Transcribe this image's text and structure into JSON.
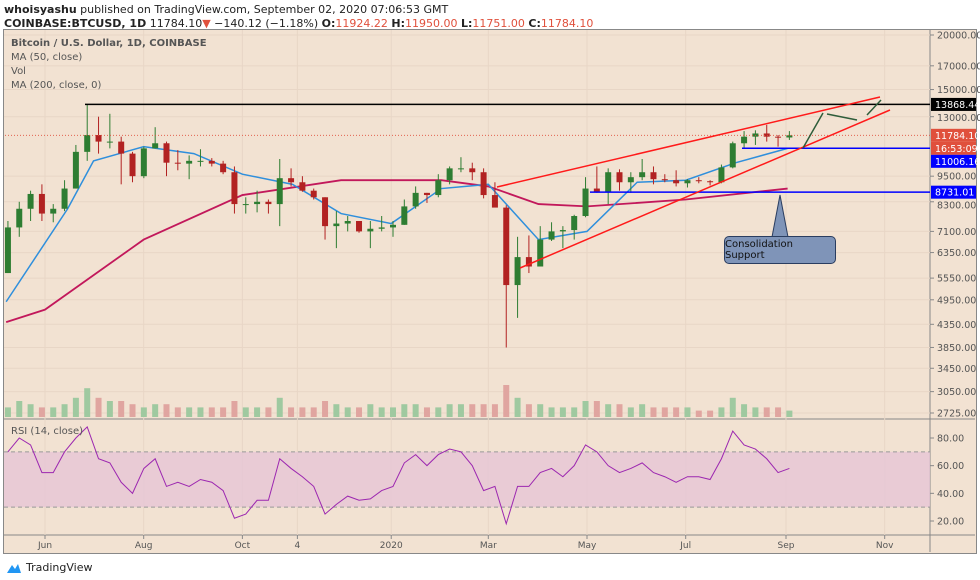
{
  "header": {
    "author": "whoisyashu",
    "published": "published on TradingView.com, September 02, 2020 07:06:53 GMT",
    "symbol": "COINBASE:BTCUSD, 1D",
    "last": "11784.10",
    "change": "−140.12 (−1.18%)",
    "o_label": "O:",
    "o": "11924.22",
    "h_label": "H:",
    "h": "11950.00",
    "l_label": "L:",
    "l": "11751.00",
    "c_label": "C:",
    "c": "11784.10"
  },
  "legend": {
    "title": "Bitcoin / U.S. Dollar, 1D, COINBASE",
    "ma50": "MA (50, close)",
    "vol": "Vol",
    "ma200": "MA (200, close, 0)"
  },
  "rsi_label": "RSI (14, close)",
  "annotation": "Consolidation Support",
  "brand": "TradingView",
  "colors": {
    "background": "#f2e2d2",
    "up": "#2e7d32",
    "down": "#b22222",
    "ma50": "#2f8fdc",
    "ma200": "#c2185b",
    "channel": "#ff1a1a",
    "support": "#0000ff",
    "rsi": "#9c27b0",
    "rsi_band": "#e6c6d6",
    "projection": "#2e5d3a"
  },
  "chart_data": {
    "type": "candlestick",
    "interval": "weekly approximation of 1D candles",
    "y_scale": "log",
    "ylim": [
      2725,
      20000
    ],
    "y_ticks": [
      "20000.00",
      "17000.00",
      "15000.00",
      "13000.00",
      "9500.00",
      "8300.00",
      "7100.00",
      "6350.00",
      "5550.00",
      "4950.00",
      "4350.00",
      "3850.00",
      "3450.00",
      "3050.00",
      "2725.00"
    ],
    "price_labels": [
      {
        "text": "13868.44",
        "value": 13868.44,
        "color": "#000000"
      },
      {
        "text": "11784.10",
        "value": 11784.1,
        "color": "#e0503c"
      },
      {
        "text": "16:53:09",
        "value": 11380,
        "color": "#e0503c"
      },
      {
        "text": "11006.16",
        "value": 11006.16,
        "color": "#0000ff"
      },
      {
        "text": "8731.01",
        "value": 8731.01,
        "color": "#0000ff"
      }
    ],
    "x_ticks": [
      {
        "label": "Jun",
        "date": "2019-06-01"
      },
      {
        "label": "Aug",
        "date": "2019-08-01"
      },
      {
        "label": "Oct",
        "date": "2019-10-01"
      },
      {
        "label": "4",
        "date": "2019-11-04"
      },
      {
        "label": "2020",
        "date": "2020-01-01"
      },
      {
        "label": "Mar",
        "date": "2020-03-01"
      },
      {
        "label": "May",
        "date": "2020-05-01"
      },
      {
        "label": "Jul",
        "date": "2020-07-01"
      },
      {
        "label": "Sep",
        "date": "2020-09-01"
      },
      {
        "label": "Nov",
        "date": "2020-11-01"
      }
    ],
    "candles_ohlc": [
      [
        "2019-05-06",
        5700,
        7500,
        5700,
        7250
      ],
      [
        "2019-05-13",
        7250,
        8300,
        6900,
        8000
      ],
      [
        "2019-05-20",
        8000,
        8800,
        7500,
        8650
      ],
      [
        "2019-05-27",
        8650,
        9100,
        7500,
        7800
      ],
      [
        "2019-06-03",
        7800,
        8200,
        7450,
        8000
      ],
      [
        "2019-06-10",
        8000,
        9300,
        7900,
        8900
      ],
      [
        "2019-06-17",
        8900,
        11200,
        8900,
        10800
      ],
      [
        "2019-06-24",
        10800,
        13868,
        10300,
        11800
      ],
      [
        "2019-07-01",
        11800,
        13000,
        10700,
        11400
      ],
      [
        "2019-07-08",
        11400,
        13200,
        11000,
        11400
      ],
      [
        "2019-07-15",
        11400,
        11700,
        9100,
        10700
      ],
      [
        "2019-07-22",
        10700,
        10800,
        9200,
        9500
      ],
      [
        "2019-07-29",
        9500,
        11100,
        9400,
        11000
      ],
      [
        "2019-08-05",
        11000,
        12300,
        11000,
        11300
      ],
      [
        "2019-08-12",
        11300,
        11400,
        9500,
        10200
      ],
      [
        "2019-08-19",
        10200,
        10900,
        9800,
        10150
      ],
      [
        "2019-08-26",
        10150,
        10600,
        9350,
        10300
      ],
      [
        "2019-09-02",
        10300,
        10950,
        10000,
        10300
      ],
      [
        "2019-09-09",
        10300,
        10450,
        10000,
        10150
      ],
      [
        "2019-09-16",
        10150,
        10300,
        9600,
        9700
      ],
      [
        "2019-09-23",
        9700,
        10000,
        7800,
        8200
      ],
      [
        "2019-09-30",
        8200,
        8500,
        7800,
        8200
      ],
      [
        "2019-10-07",
        8200,
        8800,
        7850,
        8300
      ],
      [
        "2019-10-14",
        8300,
        8400,
        7800,
        8200
      ],
      [
        "2019-10-21",
        8200,
        10400,
        7300,
        9400
      ],
      [
        "2019-10-28",
        9400,
        9900,
        9000,
        9200
      ],
      [
        "2019-11-04",
        9200,
        9500,
        8750,
        8800
      ],
      [
        "2019-11-11",
        8800,
        8900,
        8400,
        8500
      ],
      [
        "2019-11-18",
        8500,
        8500,
        6800,
        7300
      ],
      [
        "2019-11-25",
        7300,
        7900,
        6500,
        7400
      ],
      [
        "2019-12-02",
        7400,
        7700,
        7100,
        7500
      ],
      [
        "2019-12-09",
        7500,
        7500,
        7050,
        7100
      ],
      [
        "2019-12-16",
        7100,
        7500,
        6500,
        7200
      ],
      [
        "2019-12-23",
        7200,
        7700,
        7100,
        7250
      ],
      [
        "2019-12-30",
        7250,
        7500,
        6900,
        7350
      ],
      [
        "2020-01-06",
        7350,
        8400,
        7350,
        8100
      ],
      [
        "2020-01-13",
        8100,
        9000,
        8000,
        8700
      ],
      [
        "2020-01-20",
        8700,
        8700,
        8250,
        8600
      ],
      [
        "2020-01-27",
        8600,
        9600,
        8500,
        9300
      ],
      [
        "2020-02-03",
        9300,
        10000,
        9100,
        9900
      ],
      [
        "2020-02-10",
        9900,
        10500,
        9700,
        9900
      ],
      [
        "2020-02-17",
        9900,
        10200,
        9300,
        9700
      ],
      [
        "2020-02-24",
        9700,
        9900,
        8450,
        8600
      ],
      [
        "2020-03-02",
        8600,
        9200,
        8500,
        8050
      ],
      [
        "2020-03-09",
        8050,
        8150,
        3850,
        5350
      ],
      [
        "2020-03-16",
        5350,
        6900,
        4500,
        6200
      ],
      [
        "2020-03-23",
        6200,
        6950,
        5700,
        5900
      ],
      [
        "2020-03-30",
        5900,
        7300,
        5900,
        6800
      ],
      [
        "2020-04-06",
        6800,
        7450,
        6750,
        7100
      ],
      [
        "2020-04-13",
        7100,
        7300,
        6500,
        7150
      ],
      [
        "2020-04-20",
        7150,
        7750,
        6800,
        7700
      ],
      [
        "2020-04-27",
        7700,
        9450,
        7650,
        8900
      ],
      [
        "2020-05-04",
        8900,
        10000,
        8700,
        8750
      ],
      [
        "2020-05-11",
        8750,
        9900,
        8200,
        9700
      ],
      [
        "2020-05-18",
        9700,
        9850,
        8800,
        9200
      ],
      [
        "2020-05-25",
        9200,
        9700,
        8700,
        9450
      ],
      [
        "2020-06-01",
        9450,
        10400,
        9300,
        9700
      ],
      [
        "2020-06-08",
        9700,
        10000,
        9100,
        9350
      ],
      [
        "2020-06-15",
        9350,
        9600,
        9200,
        9300
      ],
      [
        "2020-06-22",
        9300,
        9800,
        9000,
        9150
      ],
      [
        "2020-06-29",
        9150,
        9350,
        8950,
        9300
      ],
      [
        "2020-07-06",
        9300,
        9450,
        9150,
        9250
      ],
      [
        "2020-07-13",
        9250,
        9300,
        9050,
        9200
      ],
      [
        "2020-07-20",
        9200,
        10100,
        9150,
        9950
      ],
      [
        "2020-07-27",
        9950,
        11400,
        9900,
        11300
      ],
      [
        "2020-08-03",
        11300,
        12050,
        11000,
        11700
      ],
      [
        "2020-08-10",
        11700,
        12100,
        11200,
        11900
      ],
      [
        "2020-08-17",
        11900,
        12450,
        11400,
        11700
      ],
      [
        "2020-08-24",
        11700,
        11800,
        11100,
        11650
      ],
      [
        "2020-08-31",
        11650,
        12050,
        11500,
        11784.1
      ]
    ],
    "ma50": [
      [
        "2019-05-08",
        4900
      ],
      [
        "2019-06-15",
        8000
      ],
      [
        "2019-07-01",
        10300
      ],
      [
        "2019-08-01",
        11100
      ],
      [
        "2019-09-01",
        10700
      ],
      [
        "2019-10-01",
        9600
      ],
      [
        "2019-11-01",
        9100
      ],
      [
        "2019-12-01",
        7800
      ],
      [
        "2020-01-01",
        7400
      ],
      [
        "2020-02-01",
        8900
      ],
      [
        "2020-03-01",
        9100
      ],
      [
        "2020-04-01",
        6800
      ],
      [
        "2020-05-01",
        7100
      ],
      [
        "2020-06-01",
        9200
      ],
      [
        "2020-07-01",
        9300
      ],
      [
        "2020-08-01",
        10200
      ],
      [
        "2020-09-02",
        11000
      ]
    ],
    "ma200": [
      [
        "2019-05-08",
        4400
      ],
      [
        "2019-06-01",
        4700
      ],
      [
        "2019-08-01",
        6800
      ],
      [
        "2019-10-01",
        8600
      ],
      [
        "2019-12-01",
        9300
      ],
      [
        "2020-02-01",
        9300
      ],
      [
        "2020-03-01",
        9000
      ],
      [
        "2020-04-01",
        8200
      ],
      [
        "2020-05-01",
        8100
      ],
      [
        "2020-07-01",
        8400
      ],
      [
        "2020-09-02",
        8900
      ]
    ],
    "volume_relative": [
      3,
      5,
      4,
      3,
      3,
      4,
      6,
      9,
      6,
      5,
      5,
      4,
      3,
      4,
      4,
      3,
      3,
      3,
      3,
      3,
      5,
      3,
      3,
      3,
      6,
      3,
      3,
      3,
      5,
      4,
      3,
      3,
      4,
      3,
      3,
      4,
      4,
      3,
      3,
      4,
      4,
      4,
      4,
      4,
      10,
      6,
      4,
      4,
      3,
      3,
      3,
      5,
      5,
      4,
      4,
      3,
      4,
      3,
      3,
      3,
      3,
      2,
      2,
      3,
      6,
      4,
      3,
      3,
      3,
      2
    ],
    "rsi": {
      "ylim": [
        10,
        90
      ],
      "y_ticks": [
        "80.00",
        "60.00",
        "40.00",
        "20.00"
      ],
      "band": [
        30,
        70
      ],
      "values": [
        70,
        80,
        75,
        55,
        55,
        70,
        80,
        88,
        65,
        62,
        48,
        40,
        58,
        65,
        45,
        48,
        45,
        50,
        48,
        42,
        22,
        25,
        35,
        35,
        65,
        58,
        52,
        45,
        25,
        32,
        38,
        35,
        36,
        42,
        45,
        62,
        68,
        60,
        68,
        72,
        70,
        60,
        42,
        45,
        18,
        45,
        45,
        55,
        58,
        52,
        60,
        75,
        70,
        60,
        55,
        58,
        62,
        55,
        52,
        48,
        52,
        52,
        50,
        65,
        85,
        75,
        72,
        65,
        55,
        58
      ]
    }
  }
}
